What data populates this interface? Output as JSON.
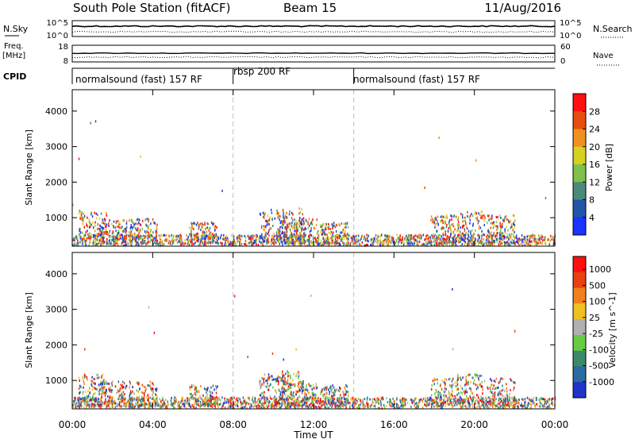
{
  "header": {
    "station": "South Pole Station (fitACF)",
    "beam": "Beam 15",
    "date": "11/Aug/2016"
  },
  "aux_panels": {
    "nsky_label": "N.Sky",
    "nsky_ticks": [
      "10^5",
      "10^0"
    ],
    "nsearch_label": "N.Search",
    "nsearch_ticks": [
      "10^5",
      "10^0"
    ],
    "freq_label": "Freq.",
    "freq_unit": "[MHz]",
    "freq_ticks": [
      "18",
      "8"
    ],
    "nave_label": "Nave",
    "nave_ticks": [
      "60",
      "0"
    ],
    "cpid_label": "CPID"
  },
  "cpid_segments": [
    {
      "label": "normalsound (fast) 157 RF",
      "start_hour": 0,
      "end_hour": 8
    },
    {
      "label": "rbsp 200 RF",
      "start_hour": 8,
      "end_hour": 14
    },
    {
      "label": "normalsound (fast) 157 RF",
      "start_hour": 14,
      "end_hour": 24
    }
  ],
  "x_axis": {
    "label": "Time UT",
    "ticks": [
      "00:00",
      "04:00",
      "08:00",
      "12:00",
      "16:00",
      "20:00",
      "00:00"
    ],
    "range_hours": [
      0,
      24
    ]
  },
  "chart_data": [
    {
      "type": "heatmap",
      "panel": "power",
      "ylabel": "Slant Range [km]",
      "yticks": [
        1000,
        2000,
        3000,
        4000
      ],
      "ylim": [
        200,
        4600
      ],
      "colorbar_label": "Power [dB]",
      "colorbar_ticks": [
        4,
        8,
        12,
        16,
        20,
        24,
        28
      ],
      "colorbar_range": [
        0,
        32
      ],
      "colors": [
        "#1a33ff",
        "#2255aa",
        "#4a8a78",
        "#7fc04a",
        "#d8d020",
        "#f09020",
        "#e84c10",
        "#ff1010"
      ],
      "dashed_vlines_hours": [
        8,
        14
      ]
    },
    {
      "type": "heatmap",
      "panel": "velocity",
      "ylabel": "Slant Range [km]",
      "yticks": [
        1000,
        2000,
        3000,
        4000
      ],
      "ylim": [
        200,
        4600
      ],
      "colorbar_label": "Velocity [m s^-1]",
      "colorbar_ticks": [
        "1000",
        "500",
        "100",
        "25",
        "-25",
        "-100",
        "-500",
        "-1000"
      ],
      "colors": [
        "#2233cc",
        "#2a6aa0",
        "#3a8a6a",
        "#66cc44",
        "#b0b0b0",
        "#f0c020",
        "#f08020",
        "#e84010",
        "#ff1010"
      ],
      "dashed_vlines_hours": [
        8,
        14
      ]
    }
  ]
}
